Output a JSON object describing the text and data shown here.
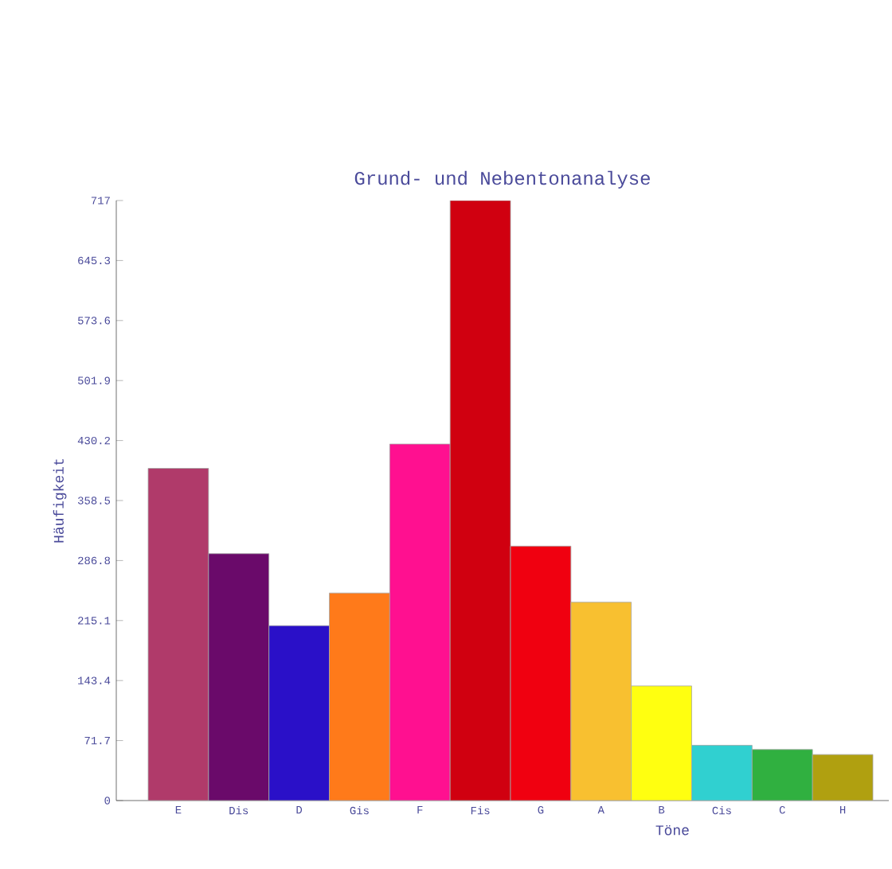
{
  "chart_data": {
    "type": "bar",
    "title": "Grund- und Nebentonanalyse",
    "xlabel": "Töne",
    "ylabel": "Häufigkeit",
    "categories": [
      "E",
      "Dis",
      "D",
      "Gis",
      "F",
      "Fis",
      "G",
      "A",
      "B",
      "Cis",
      "C",
      "H"
    ],
    "values": [
      397,
      295,
      209,
      248,
      426,
      717,
      304,
      237,
      137,
      66,
      61,
      55
    ],
    "colors": [
      "#b03a6a",
      "#6a0a6a",
      "#2a10c8",
      "#ff7a1a",
      "#ff1090",
      "#d00010",
      "#f00010",
      "#f8c030",
      "#ffff10",
      "#30d0d0",
      "#30b040",
      "#b0a010"
    ],
    "ylim": [
      0,
      717
    ],
    "yticks": [
      0,
      71.7,
      143.4,
      215.1,
      286.8,
      358.5,
      430.2,
      501.9,
      573.6,
      645.3,
      717
    ],
    "grid": false
  }
}
